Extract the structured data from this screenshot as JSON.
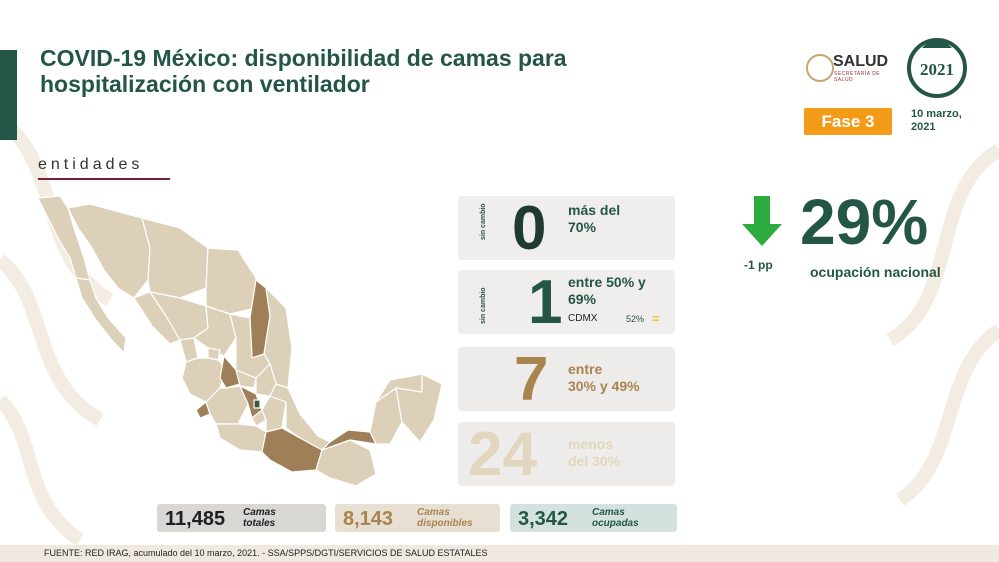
{
  "title_line1": "COVID-19 México: disponibilidad de camas para",
  "title_line2": "hospitalización con ventilador",
  "logos": {
    "salud": "SALUD",
    "salud_sub": "SECRETARÍA DE SALUD",
    "logo_2021": "2021"
  },
  "fase": "Fase 3",
  "date_line1": "10 marzo,",
  "date_line2": "2021",
  "section_label": "entidades",
  "cards": [
    {
      "side_label": "sin cambio",
      "number": "0",
      "line1": "más del",
      "line2": "70%",
      "number_color": "#1f3a30",
      "text_color": "#245647"
    },
    {
      "side_label": "sin cambio",
      "number": "1",
      "line1": "entre 50% y",
      "line2": "69%",
      "number_color": "#245647",
      "text_color": "#245647",
      "sub_entity": "CDMX",
      "sub_value": "52%",
      "sub_icon": "equal-icon"
    },
    {
      "side_label": "",
      "number": "7",
      "line1": "entre",
      "line2": "30% y 49%",
      "number_color": "#a8844f",
      "text_color": "#a8844f"
    },
    {
      "side_label": "",
      "number": "24",
      "line1": "menos",
      "line2": "del 30%",
      "number_color": "#e2d6bf",
      "text_color": "#e2d6bf"
    }
  ],
  "national": {
    "change": "-1 pp",
    "value": "29%",
    "label": "ocupación nacional",
    "arrow_icon": "down-arrow-icon",
    "arrow_color": "#2eab3f"
  },
  "stats": [
    {
      "number": "11,485",
      "label1": "Camas",
      "label2": "totales",
      "color": "#1f1f1f"
    },
    {
      "number": "8,143",
      "label1": "Camas",
      "label2": "disponibles",
      "color": "#a8844f"
    },
    {
      "number": "3,342",
      "label1": "Camas",
      "label2": "ocupadas",
      "color": "#245647"
    }
  ],
  "footer": "FUENTE: RED IRAG, acumulado del 10 marzo, 2021.  -  SSA/SPPS/DGTI/SERVICIOS DE SALUD ESTATALES",
  "colors": {
    "primary": "#245647",
    "accent_orange": "#f29b19",
    "map_light": "#ddd0b9",
    "map_mid": "#9e7f58",
    "map_dark": "#3a5a3f"
  }
}
